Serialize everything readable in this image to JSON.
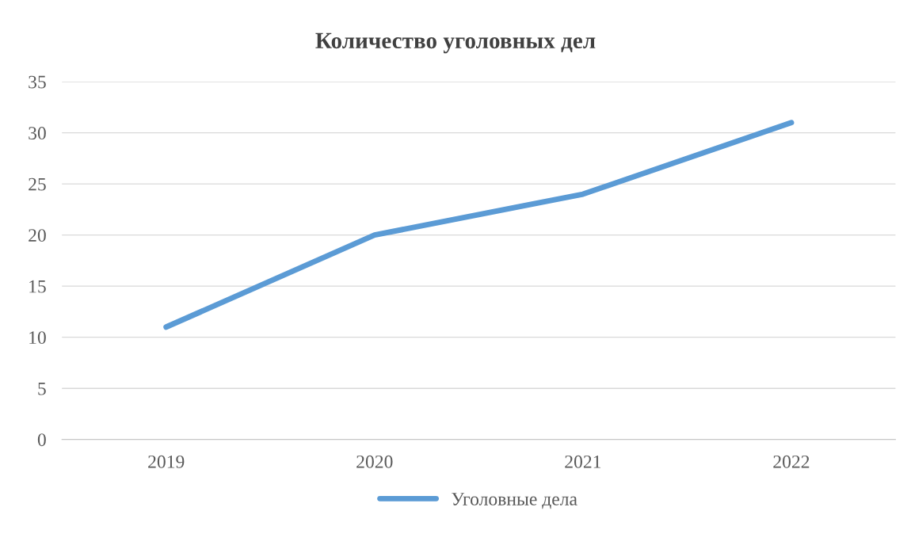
{
  "chart_data": {
    "type": "line",
    "title": "Количество уголовных дел",
    "categories": [
      "2019",
      "2020",
      "2021",
      "2022"
    ],
    "series": [
      {
        "name": "Уголовные дела",
        "color": "#5b9bd5",
        "values": [
          11,
          20,
          24,
          31
        ]
      }
    ],
    "ylim": [
      0,
      35
    ],
    "yticks": [
      0,
      5,
      10,
      15,
      20,
      25,
      30,
      35
    ],
    "grid": "y",
    "legend": "bottom",
    "marker": "none",
    "line_style": "solid"
  }
}
